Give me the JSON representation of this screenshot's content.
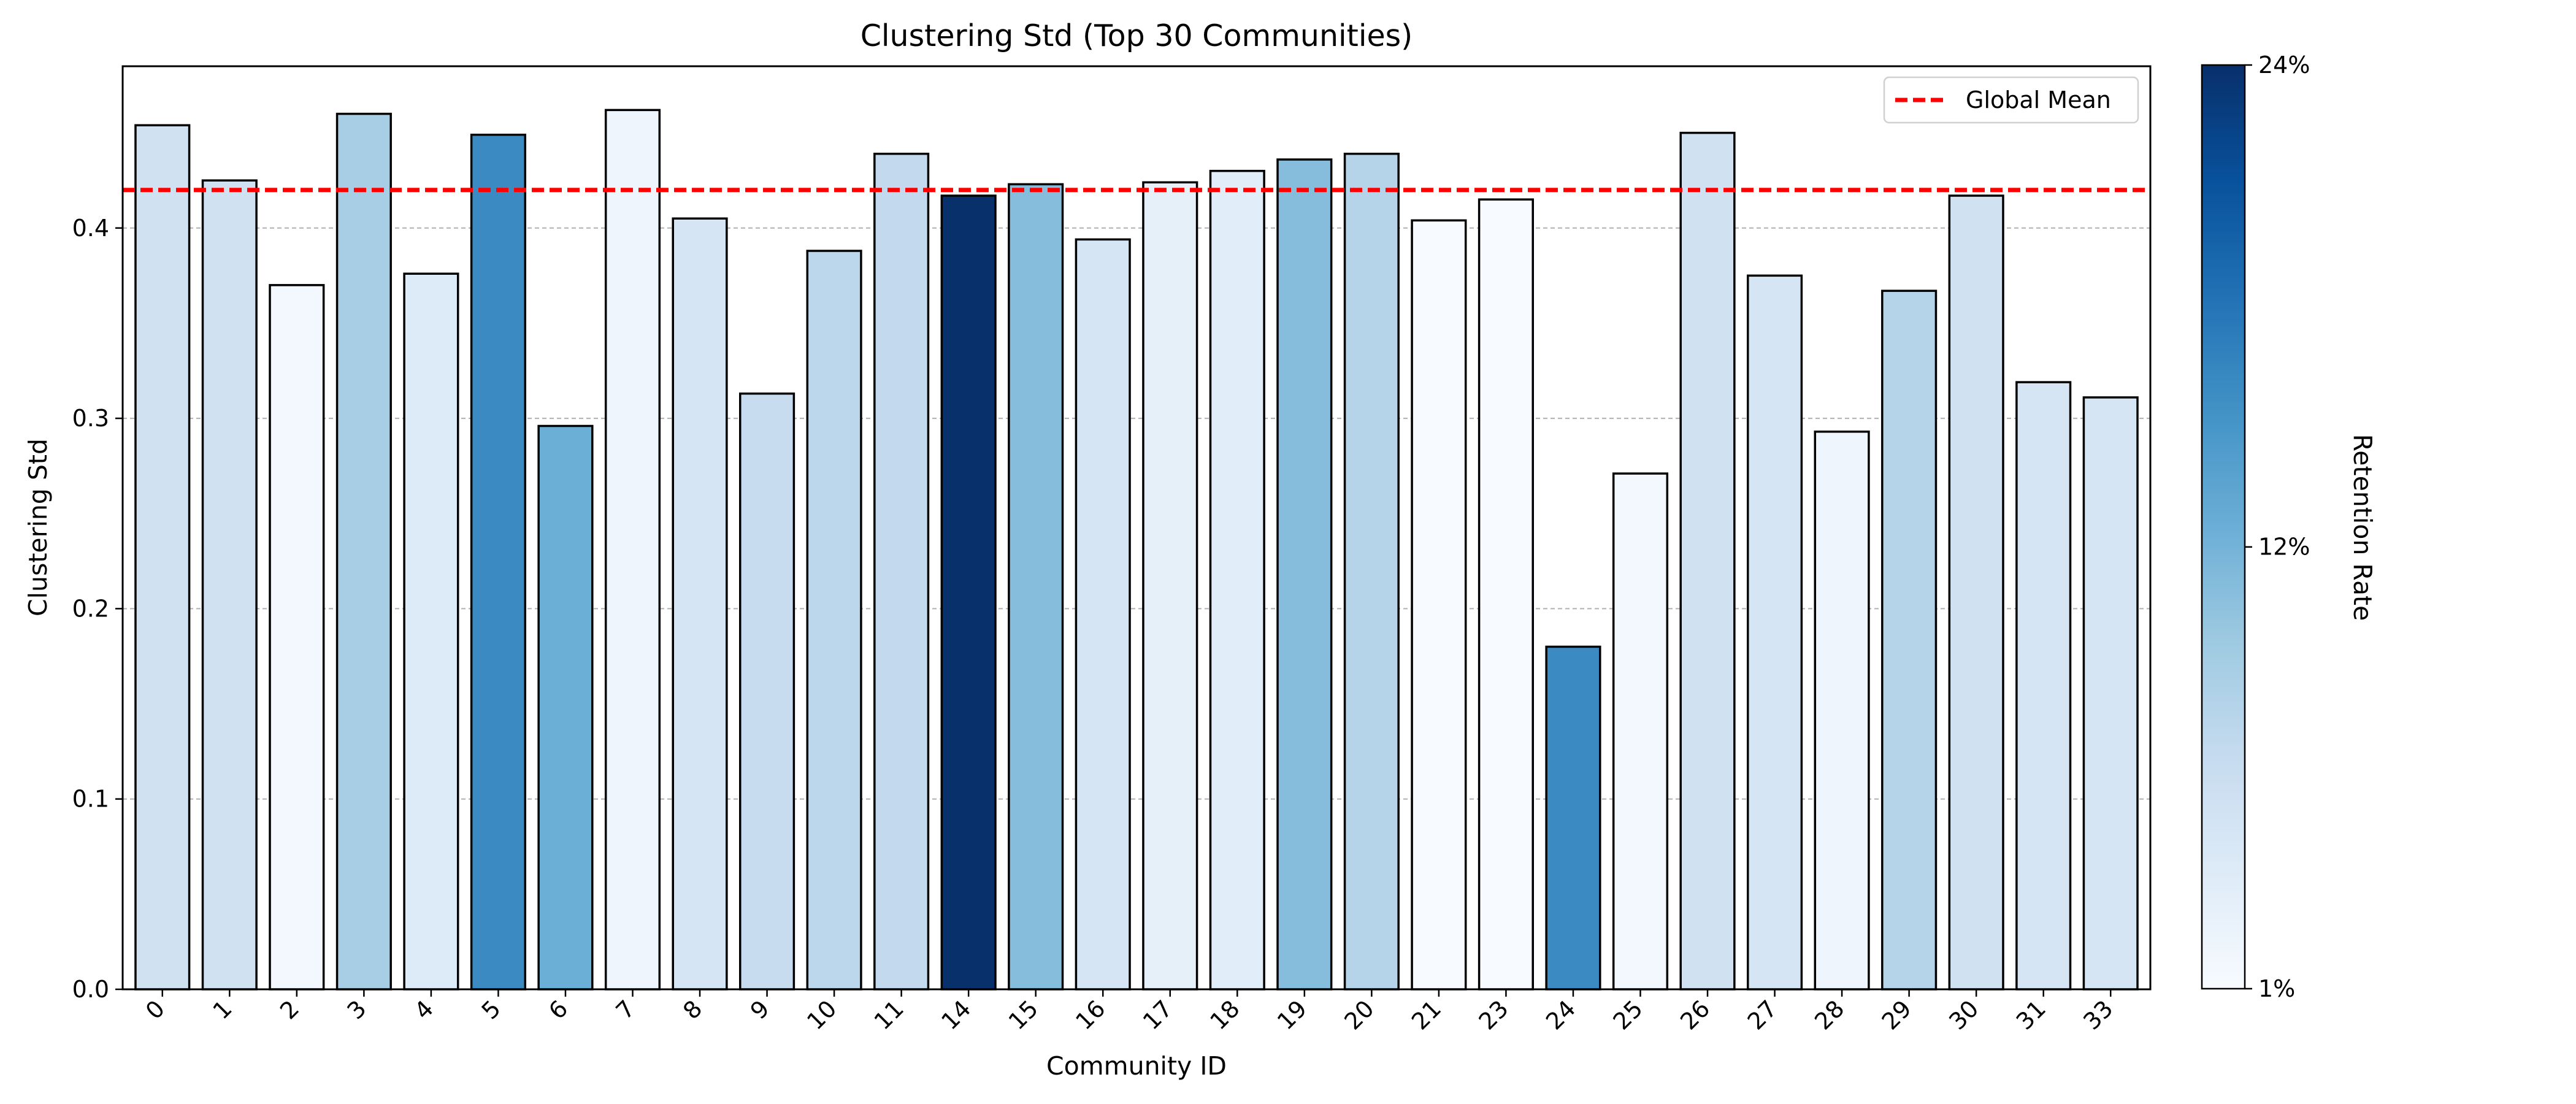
{
  "chart_data": {
    "type": "bar",
    "title": "Clustering Std (Top 30 Communities)",
    "xlabel": "Community ID",
    "ylabel": "Clustering Std",
    "categories": [
      "0",
      "1",
      "2",
      "3",
      "4",
      "5",
      "6",
      "7",
      "8",
      "9",
      "10",
      "11",
      "14",
      "15",
      "16",
      "17",
      "18",
      "19",
      "20",
      "21",
      "23",
      "24",
      "25",
      "26",
      "27",
      "28",
      "29",
      "30",
      "31",
      "33"
    ],
    "values": [
      0.454,
      0.425,
      0.37,
      0.46,
      0.376,
      0.449,
      0.296,
      0.462,
      0.405,
      0.313,
      0.388,
      0.439,
      0.417,
      0.423,
      0.394,
      0.424,
      0.43,
      0.436,
      0.439,
      0.404,
      0.415,
      0.18,
      0.271,
      0.45,
      0.375,
      0.293,
      0.367,
      0.417,
      0.319,
      0.311
    ],
    "retention_rate": [
      0.055,
      0.055,
      0.015,
      0.09,
      0.04,
      0.16,
      0.125,
      0.02,
      0.05,
      0.065,
      0.075,
      0.07,
      0.24,
      0.11,
      0.05,
      0.03,
      0.035,
      0.11,
      0.08,
      0.01,
      0.01,
      0.16,
      0.015,
      0.055,
      0.05,
      0.02,
      0.08,
      0.055,
      0.05,
      0.05
    ],
    "ylim": [
      0,
      0.485
    ],
    "yticks": [
      0.0,
      0.1,
      0.2,
      0.3,
      0.4
    ],
    "ytick_labels": [
      "0.0",
      "0.1",
      "0.2",
      "0.3",
      "0.4"
    ],
    "grid": "y-dashed",
    "reference_line": {
      "label": "Global Mean",
      "value": 0.42,
      "color": "#ff0000",
      "style": "dashed"
    },
    "legend": {
      "placement": "top-right",
      "entries": [
        "Global Mean"
      ]
    },
    "colorbar": {
      "label": "Retention Rate",
      "min": 0.01,
      "max": 0.24,
      "ticks": [
        0.24,
        0.12,
        0.01
      ],
      "tick_labels": [
        "24%",
        "12%",
        "1%"
      ],
      "colormap": "Blues",
      "colors": [
        "#f7fbff",
        "#deebf7",
        "#c6dbef",
        "#9ecae1",
        "#6baed6",
        "#4292c6",
        "#2171b5",
        "#08519c",
        "#08306b"
      ]
    }
  }
}
